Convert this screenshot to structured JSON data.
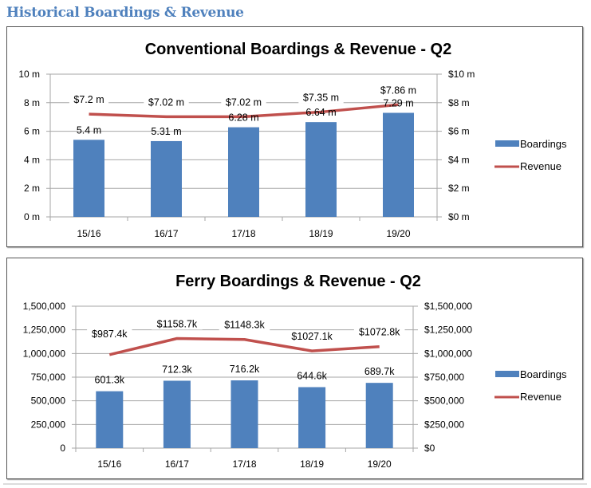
{
  "page_heading": "Historical Boardings & Revenue",
  "chart_data": [
    {
      "type": "bar+line",
      "title": "Conventional Boardings & Revenue - Q2",
      "categories": [
        "15/16",
        "16/17",
        "17/18",
        "18/19",
        "19/20"
      ],
      "series": [
        {
          "name": "Boardings",
          "type": "bar",
          "axis": "left",
          "values": [
            5.4,
            5.31,
            6.28,
            6.64,
            7.29
          ],
          "labels": [
            "5.4 m",
            "5.31 m",
            "6.28 m",
            "6.64 m",
            "7.29 m"
          ],
          "color": "#4f81bd"
        },
        {
          "name": "Revenue",
          "type": "line",
          "axis": "right",
          "values": [
            7.2,
            7.02,
            7.02,
            7.35,
            7.86
          ],
          "labels": [
            "$7.2 m",
            "$7.02 m",
            "$7.02 m",
            "$7.35 m",
            "$7.86 m"
          ],
          "color": "#c0504d"
        }
      ],
      "left_axis": {
        "ylim": [
          0,
          10
        ],
        "ticks": [
          0,
          2,
          4,
          6,
          8,
          10
        ],
        "tick_labels": [
          "0 m",
          "2 m",
          "4 m",
          "6 m",
          "8 m",
          "10 m"
        ]
      },
      "right_axis": {
        "ylim": [
          0,
          10
        ],
        "ticks": [
          0,
          2,
          4,
          6,
          8,
          10
        ],
        "tick_labels": [
          "$0 m",
          "$2 m",
          "$4 m",
          "$6 m",
          "$8 m",
          "$10 m"
        ]
      },
      "grid": true,
      "legend": {
        "position": "right",
        "entries": [
          "Boardings",
          "Revenue"
        ]
      }
    },
    {
      "type": "bar+line",
      "title": "Ferry Boardings & Revenue - Q2",
      "categories": [
        "15/16",
        "16/17",
        "17/18",
        "18/19",
        "19/20"
      ],
      "series": [
        {
          "name": "Boardings",
          "type": "bar",
          "axis": "left",
          "values": [
            601300,
            712300,
            716200,
            644600,
            689700
          ],
          "labels": [
            "601.3k",
            "712.3k",
            "716.2k",
            "644.6k",
            "689.7k"
          ],
          "color": "#4f81bd"
        },
        {
          "name": "Revenue",
          "type": "line",
          "axis": "right",
          "values": [
            987400,
            1158700,
            1148300,
            1027100,
            1072800
          ],
          "labels": [
            "$987.4k",
            "$1158.7k",
            "$1148.3k",
            "$1027.1k",
            "$1072.8k"
          ],
          "color": "#c0504d"
        }
      ],
      "left_axis": {
        "ylim": [
          0,
          1500000
        ],
        "ticks": [
          0,
          250000,
          500000,
          750000,
          1000000,
          1250000,
          1500000
        ],
        "tick_labels": [
          "0",
          "250,000",
          "500,000",
          "750,000",
          "1,000,000",
          "1,250,000",
          "1,500,000"
        ]
      },
      "right_axis": {
        "ylim": [
          0,
          1500000
        ],
        "ticks": [
          0,
          250000,
          500000,
          750000,
          1000000,
          1250000,
          1500000
        ],
        "tick_labels": [
          "$0",
          "$250,000",
          "$500,000",
          "$750,000",
          "$1,000,000",
          "$1,250,000",
          "$1,500,000"
        ]
      },
      "grid": true,
      "legend": {
        "position": "right",
        "entries": [
          "Boardings",
          "Revenue"
        ]
      }
    }
  ]
}
